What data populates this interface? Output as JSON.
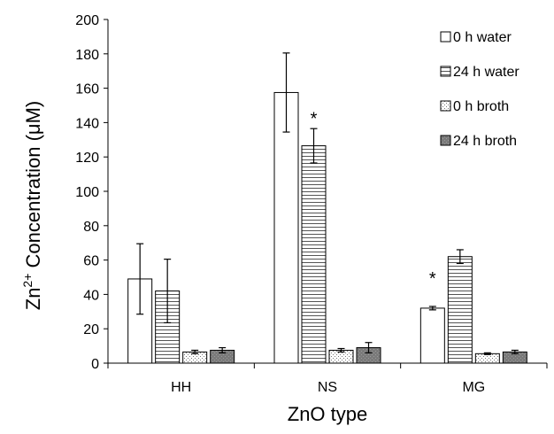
{
  "chart_data": {
    "type": "bar",
    "title": "",
    "xlabel": "ZnO type",
    "ylabel_parts": {
      "base": "Zn",
      "sup": "2+",
      "rest": " Concentration (μM)"
    },
    "ylim": [
      0,
      200
    ],
    "yticks": [
      0,
      20,
      40,
      60,
      80,
      100,
      120,
      140,
      160,
      180,
      200
    ],
    "categories": [
      "HH",
      "NS",
      "MG"
    ],
    "grid": false,
    "legend_position": "top-right",
    "series": [
      {
        "name": "0 h water",
        "pattern": "white",
        "values": [
          49,
          157.5,
          32
        ],
        "errors": [
          20.5,
          23,
          1
        ]
      },
      {
        "name": "24 h water",
        "pattern": "hlines",
        "values": [
          42,
          126.5,
          62
        ],
        "errors": [
          18.5,
          10,
          4
        ]
      },
      {
        "name": "0 h broth",
        "pattern": "dots",
        "values": [
          6.5,
          7.5,
          5.5
        ],
        "errors": [
          1,
          1,
          0.5
        ]
      },
      {
        "name": "24 h broth",
        "pattern": "gray",
        "values": [
          7.5,
          9,
          6.5
        ],
        "errors": [
          1.5,
          3,
          1
        ]
      }
    ],
    "annotations": [
      {
        "text": "*",
        "category": "NS",
        "series": "24 h water",
        "y": 144
      },
      {
        "text": "*",
        "category": "MG",
        "series": "0 h water",
        "y": 51
      }
    ]
  }
}
